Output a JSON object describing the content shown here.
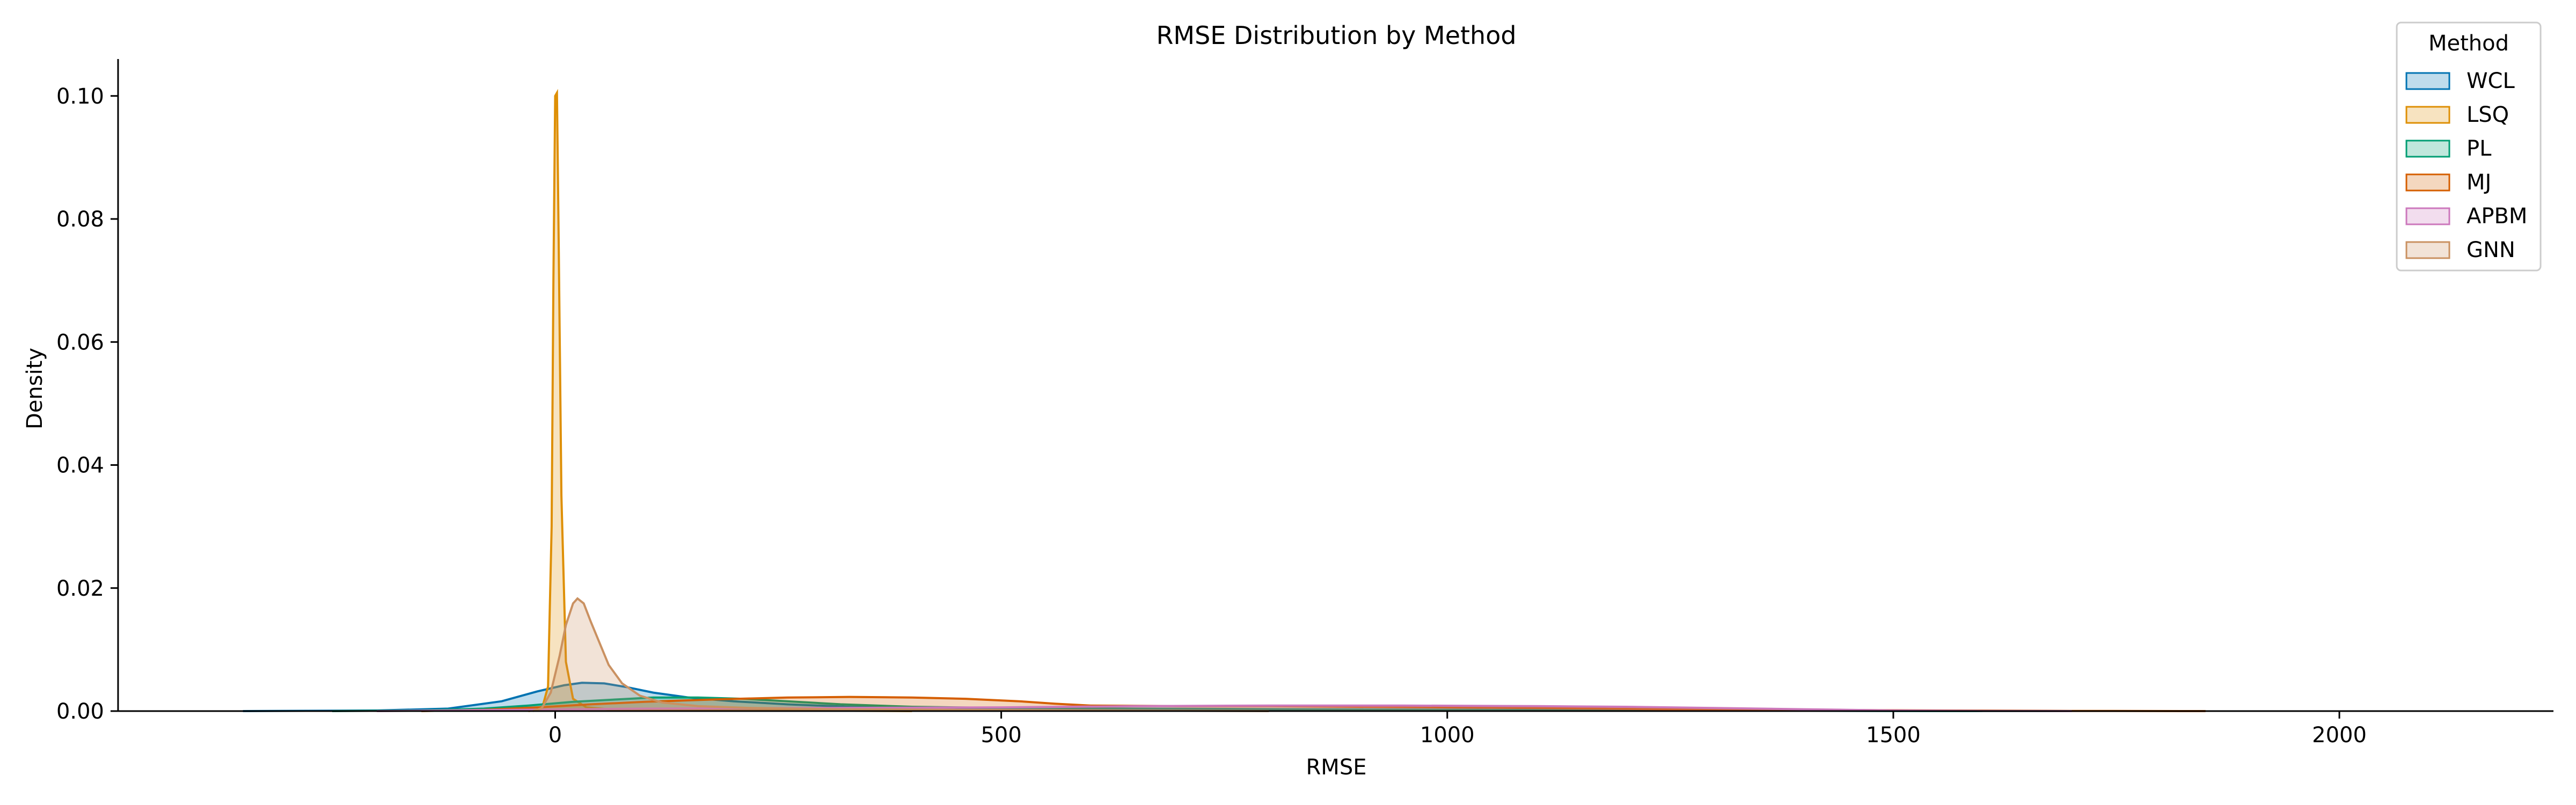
{
  "chart_data": {
    "type": "area",
    "title": "RMSE Distribution by Method",
    "xlabel": "RMSE",
    "ylabel": "Density",
    "xlim": [
      -490,
      2240
    ],
    "ylim": [
      0,
      0.106
    ],
    "xticks": [
      0,
      500,
      1000,
      1500,
      2000
    ],
    "yticks": [
      0.0,
      0.02,
      0.04,
      0.06,
      0.08,
      0.1
    ],
    "ytick_labels": [
      "0.00",
      "0.02",
      "0.04",
      "0.06",
      "0.08",
      "0.10"
    ],
    "grid": false,
    "legend": {
      "title": "Method",
      "placement": "top-right"
    },
    "series": [
      {
        "name": "WCL",
        "color": "#0173b2",
        "points": [
          [
            -350,
            0
          ],
          [
            -200,
            0.0001
          ],
          [
            -120,
            0.0004
          ],
          [
            -60,
            0.0016
          ],
          [
            -20,
            0.0032
          ],
          [
            10,
            0.0042
          ],
          [
            30,
            0.0046
          ],
          [
            55,
            0.0045
          ],
          [
            80,
            0.0039
          ],
          [
            110,
            0.003
          ],
          [
            150,
            0.0022
          ],
          [
            200,
            0.0016
          ],
          [
            260,
            0.0011
          ],
          [
            330,
            0.0007
          ],
          [
            420,
            0.0005
          ],
          [
            550,
            0.0004
          ],
          [
            700,
            0.0003
          ],
          [
            900,
            0.0002
          ],
          [
            1100,
            0.0001
          ],
          [
            1350,
            5e-05
          ],
          [
            1600,
            0
          ]
        ]
      },
      {
        "name": "LSQ",
        "color": "#de8f05",
        "points": [
          [
            -30,
            0
          ],
          [
            -15,
            0.0003
          ],
          [
            -8,
            0.004
          ],
          [
            -4,
            0.03
          ],
          [
            -2,
            0.07
          ],
          [
            0,
            0.1
          ],
          [
            2,
            0.1005
          ],
          [
            4,
            0.075
          ],
          [
            7,
            0.035
          ],
          [
            12,
            0.008
          ],
          [
            20,
            0.002
          ],
          [
            35,
            0.0006
          ],
          [
            60,
            0.0003
          ],
          [
            120,
            0.0002
          ],
          [
            250,
            0.0001
          ],
          [
            400,
            0
          ]
        ]
      },
      {
        "name": "PL",
        "color": "#029e73",
        "points": [
          [
            -250,
            0
          ],
          [
            -150,
            0.0001
          ],
          [
            -80,
            0.0004
          ],
          [
            -30,
            0.0009
          ],
          [
            20,
            0.0015
          ],
          [
            70,
            0.0019
          ],
          [
            110,
            0.0022
          ],
          [
            160,
            0.0022
          ],
          [
            210,
            0.002
          ],
          [
            260,
            0.0016
          ],
          [
            320,
            0.0011
          ],
          [
            400,
            0.0007
          ],
          [
            500,
            0.0005
          ],
          [
            650,
            0.0004
          ],
          [
            850,
            0.0003
          ],
          [
            1050,
            0.0002
          ],
          [
            1300,
            0.0001
          ],
          [
            1500,
            3e-05
          ],
          [
            1700,
            0
          ]
        ]
      },
      {
        "name": "MJ",
        "color": "#d55e00",
        "points": [
          [
            -150,
            0
          ],
          [
            -80,
            0.0002
          ],
          [
            -20,
            0.0006
          ],
          [
            40,
            0.0011
          ],
          [
            100,
            0.0015
          ],
          [
            180,
            0.0019
          ],
          [
            260,
            0.0022
          ],
          [
            330,
            0.0023
          ],
          [
            400,
            0.0022
          ],
          [
            460,
            0.002
          ],
          [
            520,
            0.0016
          ],
          [
            560,
            0.0012
          ],
          [
            600,
            0.0009
          ],
          [
            700,
            0.0008
          ],
          [
            800,
            0.0008
          ],
          [
            900,
            0.0007
          ],
          [
            1000,
            0.0006
          ],
          [
            1100,
            0.0005
          ],
          [
            1250,
            0.0003
          ],
          [
            1400,
            0.0002
          ],
          [
            1550,
            0.0001
          ],
          [
            1700,
            3e-05
          ],
          [
            1850,
            0
          ]
        ]
      },
      {
        "name": "APBM",
        "color": "#cc78bc",
        "points": [
          [
            -200,
            0
          ],
          [
            -50,
            0.0002
          ],
          [
            100,
            0.0004
          ],
          [
            300,
            0.0005
          ],
          [
            500,
            0.0006
          ],
          [
            650,
            0.0008
          ],
          [
            800,
            0.0009
          ],
          [
            950,
            0.0009
          ],
          [
            1100,
            0.0008
          ],
          [
            1200,
            0.0007
          ],
          [
            1300,
            0.0005
          ],
          [
            1400,
            0.0003
          ],
          [
            1450,
            0.0002
          ],
          [
            1500,
            0.0001
          ],
          [
            1600,
            3e-05
          ],
          [
            1700,
            0
          ]
        ]
      },
      {
        "name": "GNN",
        "color": "#ca9161",
        "points": [
          [
            -25,
            0
          ],
          [
            -15,
            0.0005
          ],
          [
            -5,
            0.003
          ],
          [
            5,
            0.009
          ],
          [
            12,
            0.014
          ],
          [
            20,
            0.0175
          ],
          [
            25,
            0.0183
          ],
          [
            32,
            0.0175
          ],
          [
            40,
            0.0145
          ],
          [
            50,
            0.011
          ],
          [
            60,
            0.0075
          ],
          [
            75,
            0.0045
          ],
          [
            95,
            0.0025
          ],
          [
            120,
            0.0014
          ],
          [
            160,
            0.0008
          ],
          [
            220,
            0.0005
          ],
          [
            320,
            0.0003
          ],
          [
            450,
            0.0002
          ],
          [
            600,
            0.0001
          ],
          [
            800,
            0
          ]
        ]
      }
    ]
  }
}
